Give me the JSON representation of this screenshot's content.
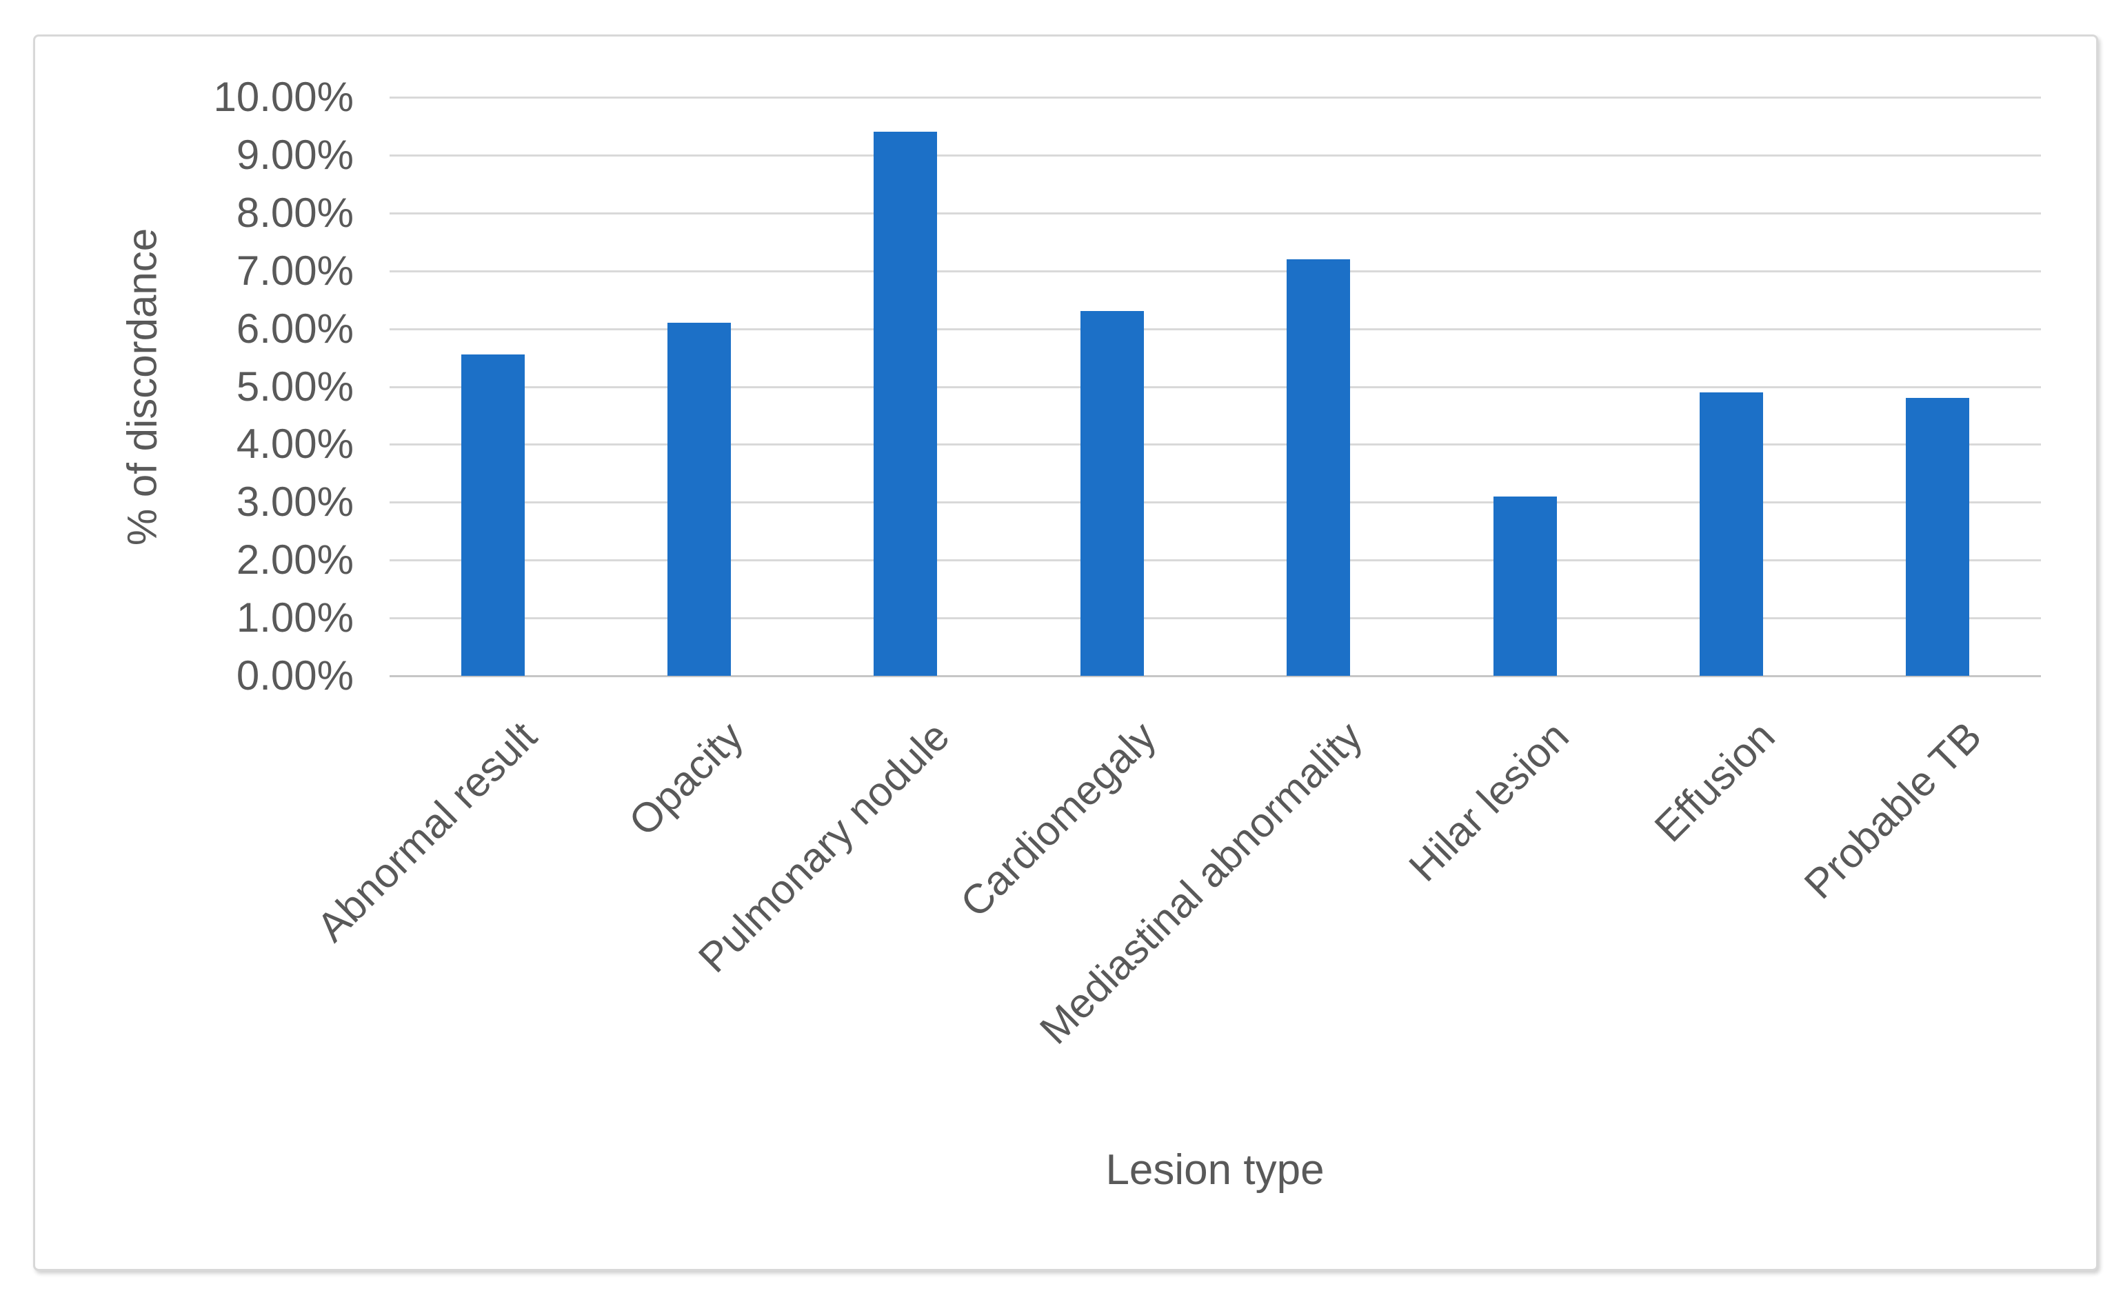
{
  "chart_data": {
    "type": "bar",
    "title": "",
    "categories": [
      "Abnormal result",
      "Opacity",
      "Pulmonary nodule",
      "Cardiomegaly",
      "Mediastinal abnormality",
      "Hilar lesion",
      "Effusion",
      "Probable TB"
    ],
    "values": [
      5.55,
      6.1,
      9.4,
      6.3,
      7.2,
      3.1,
      4.9,
      4.8
    ],
    "xlabel": "Lesion type",
    "ylabel": "% of discordance",
    "ylim": [
      0,
      10
    ],
    "ytick_step": 1,
    "ytick_labels": [
      "0.00%",
      "1.00%",
      "2.00%",
      "3.00%",
      "4.00%",
      "5.00%",
      "6.00%",
      "7.00%",
      "8.00%",
      "9.00%",
      "10.00%"
    ],
    "grid": true,
    "legend_position": "none",
    "bar_color": "#1c70c7",
    "gridline_color": "#d9d9d9",
    "axis_line_color": "#c6c6c6",
    "text_color": "#595959",
    "frame_border_color": "#d8d8d8",
    "background_color": "#ffffff"
  }
}
